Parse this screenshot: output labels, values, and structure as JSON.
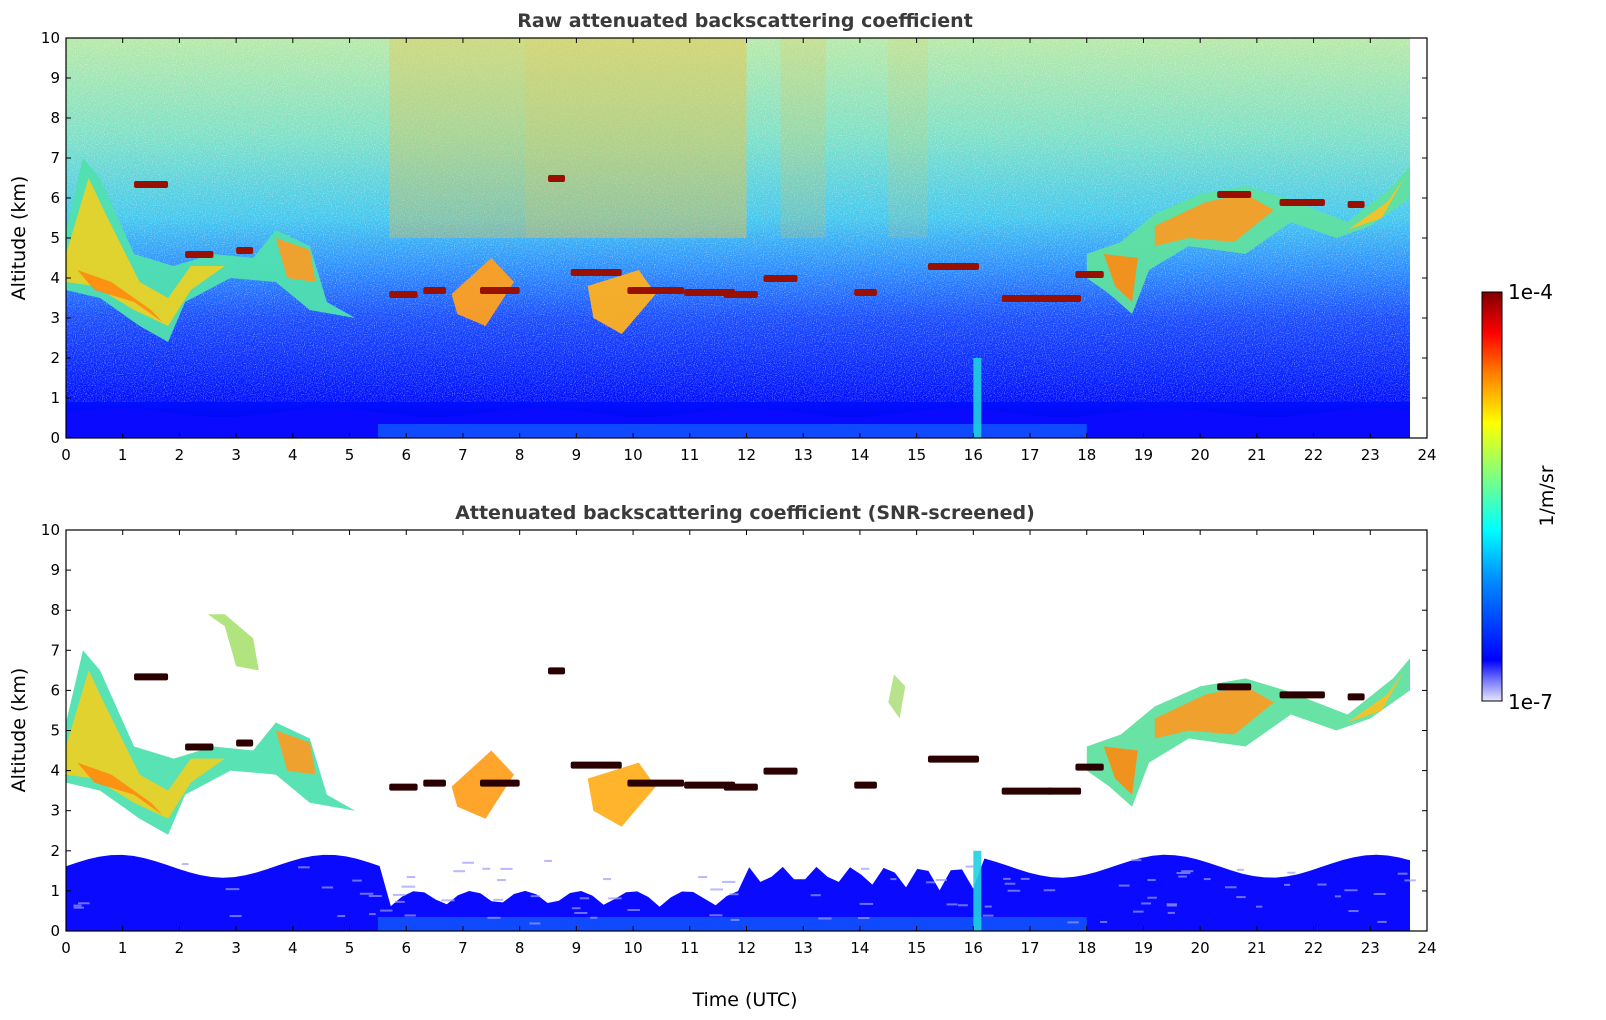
{
  "chart_data": [
    {
      "type": "heatmap",
      "title": "Raw attenuated backscattering coefficient",
      "xlabel": "",
      "ylabel": "Altitude (km)",
      "xlim": [
        0,
        24
      ],
      "ylim": [
        0,
        10
      ],
      "xticks": [
        "0",
        "1",
        "2",
        "3",
        "4",
        "5",
        "6",
        "7",
        "8",
        "9",
        "10",
        "11",
        "12",
        "13",
        "14",
        "15",
        "16",
        "17",
        "18",
        "19",
        "20",
        "21",
        "22",
        "23",
        "24"
      ],
      "yticks": [
        "0",
        "1",
        "2",
        "3",
        "4",
        "5",
        "6",
        "7",
        "8",
        "9",
        "10"
      ],
      "data_extent_x": [
        0,
        23.7
      ],
      "features": [
        {
          "name": "low boundary layer",
          "x": [
            0,
            23.7
          ],
          "y": [
            0,
            0.8
          ]
        },
        {
          "name": "aerosol layer",
          "x": [
            0,
            5.1
          ],
          "y": [
            2.5,
            7.0
          ]
        },
        {
          "name": "cloud layer",
          "x": [
            5.7,
            13.0
          ],
          "y": [
            3.2,
            4.3
          ]
        },
        {
          "name": "cloud layer",
          "x": [
            14.0,
            18.0
          ],
          "y": [
            3.4,
            4.5
          ]
        },
        {
          "name": "aerosol layer",
          "x": [
            18.0,
            23.7
          ],
          "y": [
            3.0,
            6.8
          ]
        }
      ]
    },
    {
      "type": "heatmap",
      "title": "Attenuated backscattering coefficient (SNR-screened)",
      "xlabel": "Time (UTC)",
      "ylabel": "Altitude (km)",
      "xlim": [
        0,
        24
      ],
      "ylim": [
        0,
        10
      ],
      "xticks": [
        "0",
        "1",
        "2",
        "3",
        "4",
        "5",
        "6",
        "7",
        "8",
        "9",
        "10",
        "11",
        "12",
        "13",
        "14",
        "15",
        "16",
        "17",
        "18",
        "19",
        "20",
        "21",
        "22",
        "23",
        "24"
      ],
      "yticks": [
        "0",
        "1",
        "2",
        "3",
        "4",
        "5",
        "6",
        "7",
        "8",
        "9",
        "10"
      ],
      "data_extent_x": [
        0,
        23.7
      ],
      "features": [
        {
          "name": "boundary layer",
          "x": [
            0,
            23.7
          ],
          "y": [
            0,
            2.0
          ]
        },
        {
          "name": "aerosol layer",
          "x": [
            0,
            5.1
          ],
          "y": [
            2.5,
            7.0
          ]
        },
        {
          "name": "cloud layer",
          "x": [
            5.7,
            13.0
          ],
          "y": [
            3.2,
            4.3
          ]
        },
        {
          "name": "cloud layer",
          "x": [
            14.0,
            18.0
          ],
          "y": [
            3.4,
            4.5
          ]
        },
        {
          "name": "aerosol layer",
          "x": [
            18.0,
            23.7
          ],
          "y": [
            3.0,
            6.8
          ]
        }
      ]
    }
  ],
  "colorbar": {
    "label": "1/m/sr",
    "max_label": "1e-4",
    "min_label": "1e-7",
    "colormap": "jet",
    "colors": [
      "#00008f",
      "#0000ff",
      "#0080ff",
      "#00ffff",
      "#80ff80",
      "#ffff00",
      "#ff8000",
      "#ff0000",
      "#800000"
    ]
  }
}
